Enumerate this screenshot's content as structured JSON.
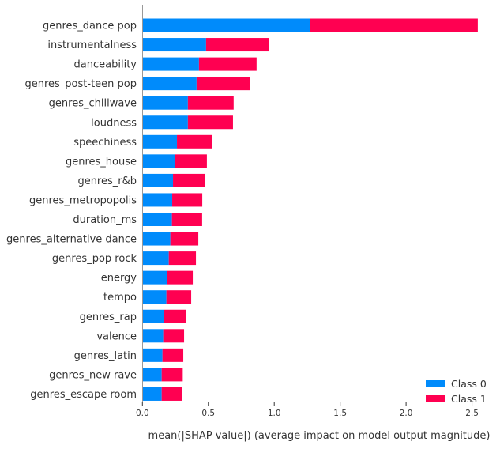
{
  "chart_data": {
    "type": "bar",
    "orientation": "horizontal",
    "stacked": true,
    "categories": [
      "genres_dance pop",
      "instrumentalness",
      "danceability",
      "genres_post-teen pop",
      "genres_chillwave",
      "loudness",
      "speechiness",
      "genres_house",
      "genres_r&b",
      "genres_metropopolis",
      "duration_ms",
      "genres_alternative dance",
      "genres_pop rock",
      "energy",
      "tempo",
      "genres_rap",
      "valence",
      "genres_latin",
      "genres_new rave",
      "genres_escape room"
    ],
    "series": [
      {
        "name": "Class 0",
        "color": "#008bfb",
        "values": [
          1.274,
          0.483,
          0.429,
          0.411,
          0.345,
          0.345,
          0.262,
          0.244,
          0.232,
          0.226,
          0.224,
          0.212,
          0.2,
          0.188,
          0.182,
          0.164,
          0.158,
          0.152,
          0.146,
          0.146
        ]
      },
      {
        "name": "Class 1",
        "color": "#ff0051",
        "values": [
          1.27,
          0.479,
          0.437,
          0.407,
          0.347,
          0.342,
          0.264,
          0.245,
          0.24,
          0.228,
          0.229,
          0.212,
          0.206,
          0.194,
          0.188,
          0.164,
          0.158,
          0.158,
          0.16,
          0.152
        ]
      }
    ],
    "xlabel": "mean(|SHAP value|) (average impact on model output magnitude)",
    "xlim": [
      0,
      2.68
    ],
    "xticks": [
      "0.0",
      "0.5",
      "1.0",
      "1.5",
      "2.0",
      "2.5"
    ],
    "grid": false,
    "legend_position": "bottom-right"
  }
}
